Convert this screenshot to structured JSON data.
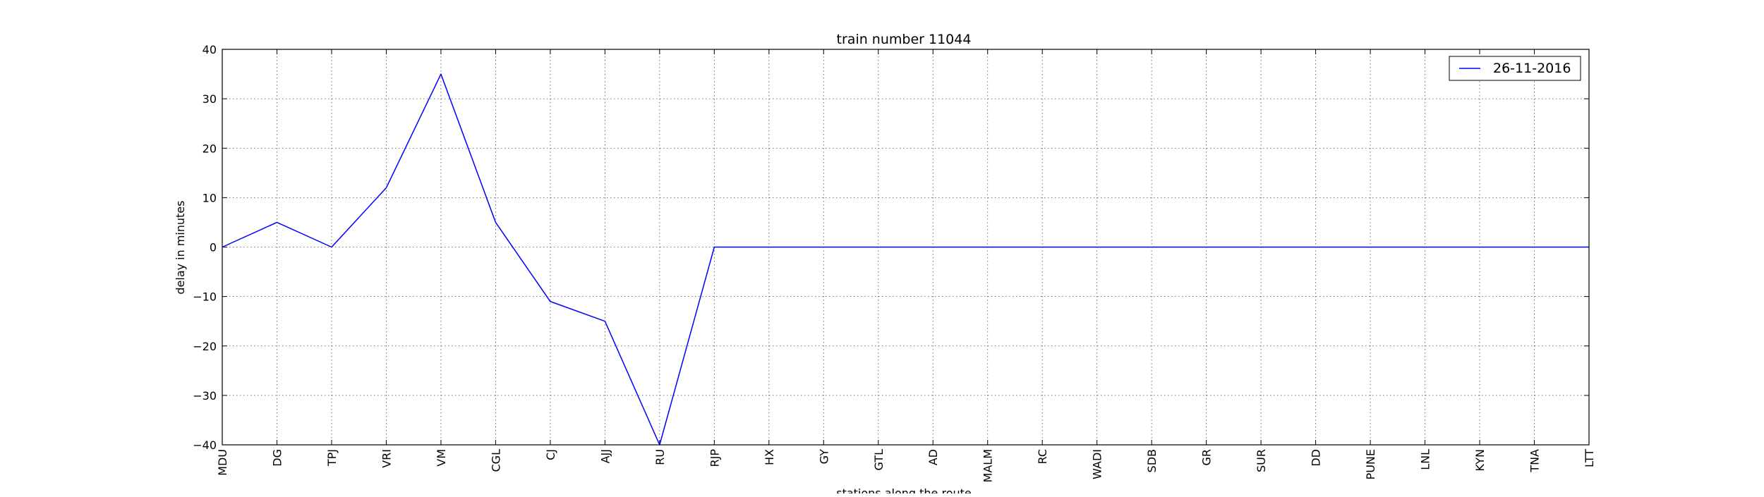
{
  "chart_data": {
    "type": "line",
    "title": "train number 11044",
    "xlabel": "stations along the route",
    "ylabel": "delay in minutes",
    "categories": [
      "MDU",
      "DG",
      "TPJ",
      "VRI",
      "VM",
      "CGL",
      "CJ",
      "AJJ",
      "RU",
      "RJP",
      "HX",
      "GY",
      "GTL",
      "AD",
      "MALM",
      "RC",
      "WADI",
      "SDB",
      "GR",
      "SUR",
      "DD",
      "PUNE",
      "LNL",
      "KYN",
      "TNA",
      "LTT"
    ],
    "series": [
      {
        "name": "26-11-2016",
        "color": "#0000ff",
        "values": [
          0,
          5,
          0,
          12,
          35,
          5,
          -11,
          -15,
          -40,
          0,
          0,
          0,
          0,
          0,
          0,
          0,
          0,
          0,
          0,
          0,
          0,
          0,
          0,
          0,
          0,
          0
        ]
      }
    ],
    "ylim": [
      -40,
      40
    ],
    "yticks": [
      40,
      30,
      20,
      10,
      0,
      -10,
      -20,
      -30,
      -40
    ],
    "grid": true,
    "legend_position": "top-right"
  }
}
